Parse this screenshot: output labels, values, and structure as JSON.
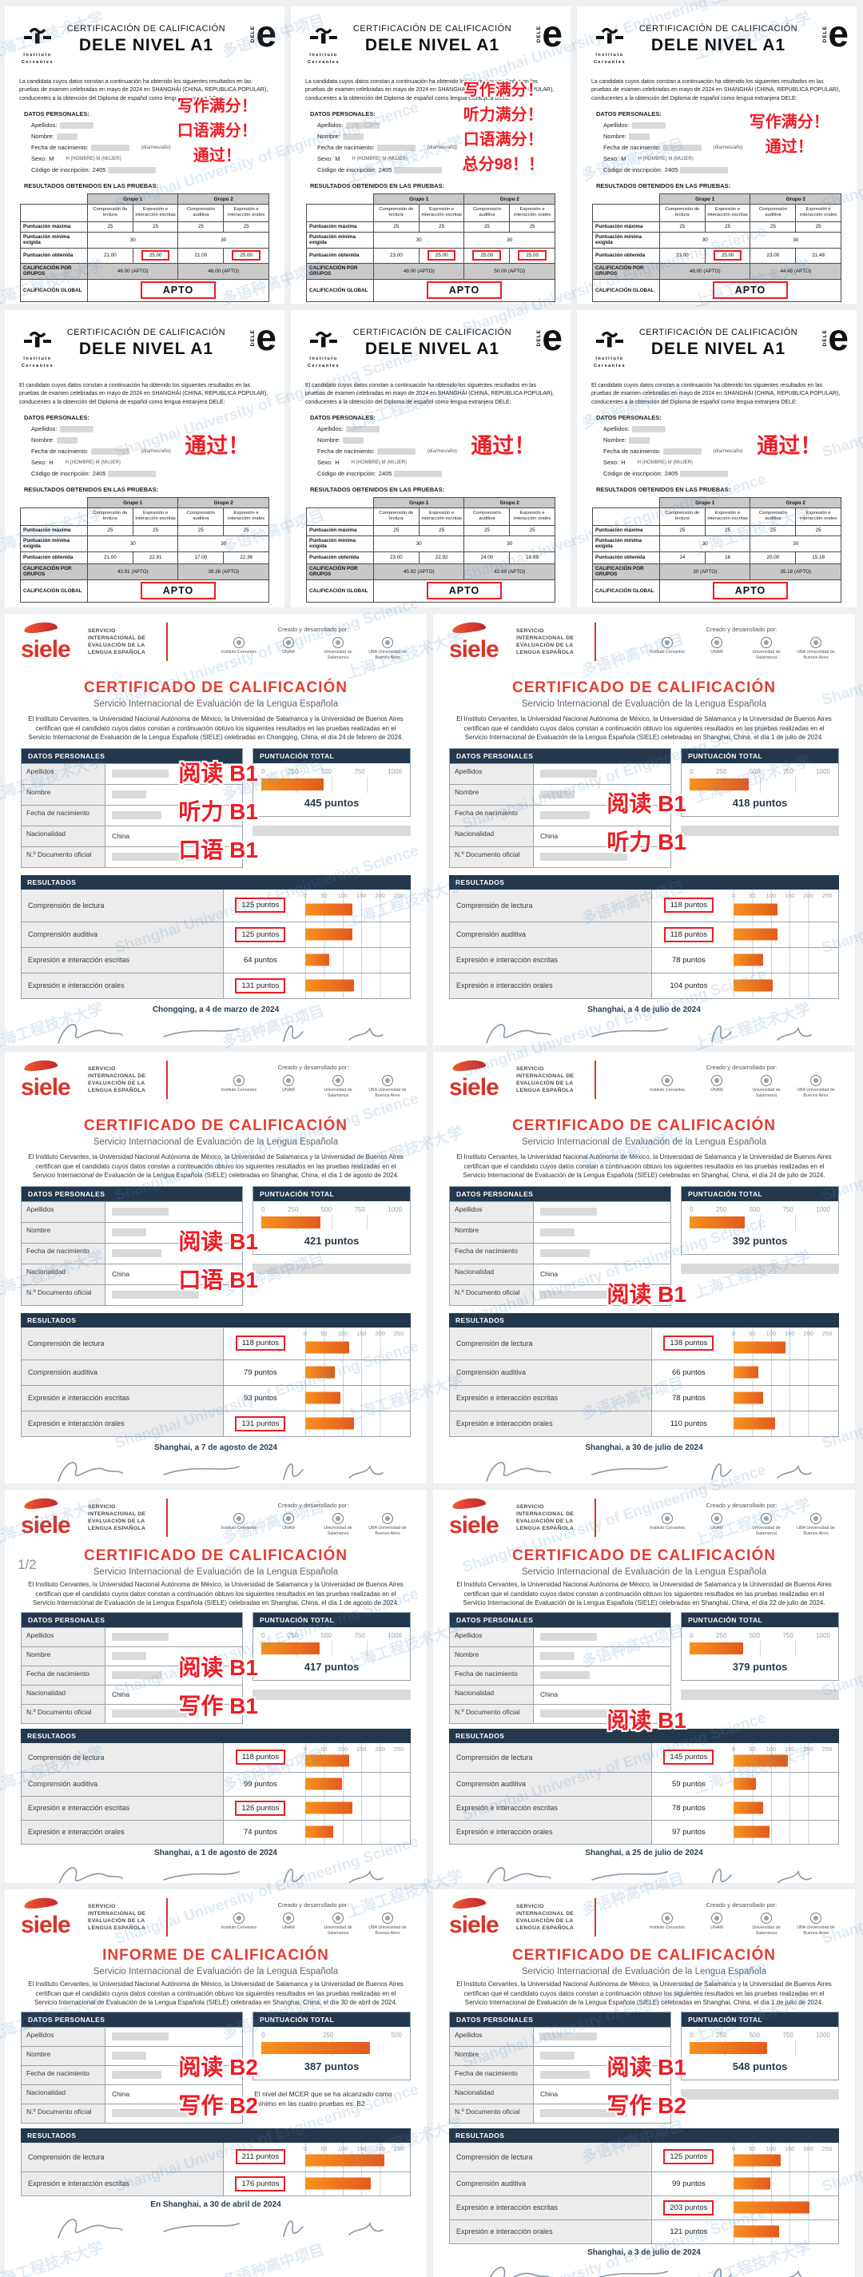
{
  "watermark": {
    "text1": "上海工程技术大学",
    "text2": "多语种高中项目",
    "text3": "Shanghai University of Engineering Science"
  },
  "dele": {
    "heading_small": "CERTIFICACIÓN DE CALIFICACIÓN",
    "heading_big": "DELE NIVEL A1",
    "cervantes_name": "Instituto Cervantes",
    "logo_vertical": "DELE",
    "logo_e": "e",
    "datos_title": "DATOS PERSONALES:",
    "fields": {
      "apellidos": "Apellidos:",
      "nombre": "Nombre:",
      "fecha": "Fecha de nacimiento:",
      "fecha_suffix": "(día/mes/año)",
      "sexo": "Sexo:",
      "sexo_legend": "H (HOMBRE)  M (MUJER)",
      "codigo": "Código de inscripción:",
      "codigo_prefix": "2405"
    },
    "resultados_title": "RESULTADOS OBTENIDOS EN LAS PRUEBAS:",
    "table": {
      "grupo1": "Grupo 1",
      "grupo2": "Grupo 2",
      "col1": "Comprensión de lectura",
      "col2": "Expresión e interacción escritas",
      "col3": "Comprensión auditiva",
      "col4": "Expresión e interacción orales",
      "row_max": "Puntuación máxima",
      "row_min": "Puntuación mínima exigida",
      "row_obt": "Puntuación obtenida",
      "row_grupos": "CALIFICACIÓN POR GRUPOS",
      "row_global": "CALIFICACIÓN GLOBAL",
      "max_value": "25",
      "min_value": "30"
    },
    "certs": [
      {
        "intro": "La candidata cuyos datos constan a continuación ha obtenido los siguientes resultados en las pruebas de examen celebradas en mayo de 2024 en SHANGHÁI (CHINA, REPUBLICA POPULAR), conducentes a la obtención del Diploma de español como lengua extranjera DELE:",
        "sexo_value": "M",
        "annotations": [
          "写作满分！",
          "口语满分！",
          "通过！"
        ],
        "scores": [
          "21.00",
          "25.00",
          "21.00",
          "25.00"
        ],
        "boxed": [
          false,
          true,
          false,
          true
        ],
        "grupo1_result": "46.00 (APTO)",
        "grupo2_result": "46.00 (APTO)",
        "global": "APTO"
      },
      {
        "intro": "La candidata cuyos datos constan a continuación ha obtenido los siguientes resultados en las pruebas de examen celebradas en mayo de 2024 en SHANGHÁI (CHINA, REPUBLICA POPULAR), conducentes a la obtención del Diploma de español como lengua extranjera DELE:",
        "sexo_value": "M",
        "annotations": [
          "写作满分！",
          "听力满分！",
          "口语满分！",
          "总分98！！"
        ],
        "scores": [
          "23.00",
          "25.00",
          "25.00",
          "25.00"
        ],
        "boxed": [
          false,
          true,
          true,
          true
        ],
        "grupo1_result": "48.00 (APTO)",
        "grupo2_result": "50.00 (APTO)",
        "global": "APTO"
      },
      {
        "intro": "La candidata cuyos datos constan a continuación ha obtenido los siguientes resultados en las pruebas de examen celebradas en mayo de 2024 en SHANGHÁI (CHINA, REPUBLICA POPULAR), conducentes a la obtención del Diploma de español como lengua extranjera DELE:",
        "sexo_value": "M",
        "annotations": [
          "写作满分！",
          "通过！"
        ],
        "scores": [
          "23.00",
          "25.00",
          "23.00",
          "21.48"
        ],
        "boxed": [
          false,
          true,
          false,
          false
        ],
        "grupo1_result": "48.00 (APTO)",
        "grupo2_result": "44.48 (APTO)",
        "global": "APTO"
      },
      {
        "intro": "El candidato cuyos datos constan a continuación ha obtenido los siguientes resultados en las pruebas de examen celebradas en mayo de 2024 en SHANGHÁI (CHINA, REPUBLICA POPULAR), conducentes a la obtención del Diploma de español como lengua extranjera DELE:",
        "sexo_value": "H",
        "annotations": [
          "通过！"
        ],
        "scores": [
          "21.00",
          "22.91",
          "17.00",
          "22.36"
        ],
        "boxed": [
          false,
          false,
          false,
          false
        ],
        "grupo1_result": "43.91 (APTO)",
        "grupo2_result": "39.36 (APTO)",
        "global": "APTO"
      },
      {
        "intro": "El candidato cuyos datos constan a continuación ha obtenido los siguientes resultados en las pruebas de examen celebradas en mayo de 2024 en SHANGHÁI (CHINA, REPUBLICA POPULAR), conducentes a la obtención del Diploma de español como lengua extranjera DELE:",
        "sexo_value": "H",
        "annotations": [
          "通过！"
        ],
        "scores": [
          "23.00",
          "22.92",
          "24.00",
          "18.69"
        ],
        "boxed": [
          false,
          false,
          false,
          false
        ],
        "grupo1_result": "45.92 (APTO)",
        "grupo2_result": "42.69 (APTO)",
        "global": "APTO"
      },
      {
        "intro": "El candidato cuyos datos constan a continuación ha obtenido los siguientes resultados en las pruebas de examen celebradas en mayo de 2024 en SHANGHÁI (CHINA, REPUBLICA POPULAR), conducentes a la obtención del Diploma de español como lengua extranjera DELE:",
        "sexo_value": "H",
        "annotations": [
          "通过！"
        ],
        "scores": [
          "14",
          "16",
          "20.00",
          "15.18"
        ],
        "boxed": [
          false,
          false,
          false,
          false
        ],
        "grupo1_result": "30 (APTO)",
        "grupo2_result": "35.18 (APTO)",
        "global": "APTO"
      }
    ]
  },
  "siele": {
    "logo_text": "siele",
    "service_name": "SERVICIO INTERNACIONAL DE EVALUACIÓN DE LA LENGUA ESPAÑOLA",
    "created_by": "Creado y desarrollado por:",
    "partners": [
      "Instituto Cervantes",
      "UNAM",
      "Universidad de Salamanca",
      "UBA Universidad de Buenos Aires"
    ],
    "subtitle": "Servicio Internacional de Evaluación de la Lengua Española",
    "datos_title": "DATOS PERSONALES",
    "fields": [
      "Apellidos",
      "Nombre",
      "Fecha de nacimiento",
      "Nacionalidad",
      "N.º Documento oficial"
    ],
    "redact_widths": [
      "46%",
      "28%",
      "40%",
      "0",
      "70%"
    ],
    "nacionalidad_value": "China",
    "total_title": "PUNTUACIÓN TOTAL",
    "resultados_title": "RESULTADOS",
    "row_axis": [
      "0",
      "50",
      "100",
      "150",
      "200",
      "250"
    ],
    "row_labels": [
      "Comprensión de lectura",
      "Comprensión auditiva",
      "Expresión e interacción escritas",
      "Expresión e interacción orales"
    ],
    "certs": [
      {
        "page_marker": "",
        "title": "CERTIFICADO DE CALIFICACIÓN",
        "intro": "El Instituto Cervantes, la Universidad Nacional Autónoma de México, la Universidad de Salamanca y la Universidad de Buenos Aires certifican que el candidato cuyos datos constan a continuación obtuvo los siguientes resultados en las pruebas realizadas en el Servicio Internacional de Evaluación de la Lengua Española (SIELE) celebradas en Chongqing, China, el día 24 de febrero de 2024.",
        "total": {
          "v": 445,
          "max": 1000,
          "text": "445 puntos",
          "axis": [
            "0",
            "250",
            "500",
            "750",
            "1000"
          ]
        },
        "annotations": [
          "阅读 B1",
          "听力 B1",
          "口语 B1"
        ],
        "rows": [
          {
            "li": 0,
            "v": 125,
            "text": "125 puntos",
            "boxed": true
          },
          {
            "li": 1,
            "v": 125,
            "text": "125 puntos",
            "boxed": true
          },
          {
            "li": 2,
            "v": 64,
            "text": "64 puntos",
            "boxed": false
          },
          {
            "li": 3,
            "v": 131,
            "text": "131 puntos",
            "boxed": true
          }
        ],
        "date_line": "Chongqing, a 4 de marzo de 2024",
        "mcer_note": null
      },
      {
        "page_marker": "",
        "title": "CERTIFICADO DE CALIFICACIÓN",
        "intro": "El Instituto Cervantes, la Universidad Nacional Autónoma de México, la Universidad de Salamanca y la Universidad de Buenos Aires certifican que el candidato cuyos datos constan a continuación obtuvo los siguientes resultados en las pruebas realizadas en el Servicio Internacional de Evaluación de la Lengua Española (SIELE) celebradas en Shanghai, China, el día 1 de julio de 2024.",
        "total": {
          "v": 418,
          "max": 1000,
          "text": "418 puntos",
          "axis": [
            "0",
            "250",
            "500",
            "750",
            "1000"
          ]
        },
        "annotations": [
          "阅读 B1",
          "听力 B1"
        ],
        "rows": [
          {
            "li": 0,
            "v": 118,
            "text": "118 puntos",
            "boxed": true
          },
          {
            "li": 1,
            "v": 118,
            "text": "118 puntos",
            "boxed": true
          },
          {
            "li": 2,
            "v": 78,
            "text": "78 puntos",
            "boxed": false
          },
          {
            "li": 3,
            "v": 104,
            "text": "104 puntos",
            "boxed": false
          }
        ],
        "date_line": "Shanghai, a 4 de julio de 2024",
        "mcer_note": null
      },
      {
        "page_marker": "",
        "title": "CERTIFICADO DE CALIFICACIÓN",
        "intro": "El Instituto Cervantes, la Universidad Nacional Autónoma de México, la Universidad de Salamanca y la Universidad de Buenos Aires certifican que el candidato cuyos datos constan a continuación obtuvo los siguientes resultados en las pruebas realizadas en el Servicio Internacional de Evaluación de la Lengua Española (SIELE) celebradas en Shanghai, China, el día 1 de agosto de 2024.",
        "total": {
          "v": 421,
          "max": 1000,
          "text": "421 puntos",
          "axis": [
            "0",
            "250",
            "500",
            "750",
            "1000"
          ]
        },
        "annotations": [
          "阅读 B1",
          "口语 B1"
        ],
        "rows": [
          {
            "li": 0,
            "v": 118,
            "text": "118 puntos",
            "boxed": true
          },
          {
            "li": 1,
            "v": 79,
            "text": "79 puntos",
            "boxed": false
          },
          {
            "li": 2,
            "v": 93,
            "text": "93 puntos",
            "boxed": false
          },
          {
            "li": 3,
            "v": 131,
            "text": "131 puntos",
            "boxed": true
          }
        ],
        "date_line": "Shanghai, a 7 de agosto de 2024",
        "mcer_note": null
      },
      {
        "page_marker": "",
        "title": "CERTIFICADO DE CALIFICACIÓN",
        "intro": "El Instituto Cervantes, la Universidad Nacional Autónoma de México, la Universidad de Salamanca y la Universidad de Buenos Aires certifican que el candidato cuyos datos constan a continuación obtuvo los siguientes resultados en las pruebas realizadas en el Servicio Internacional de Evaluación de la Lengua Española (SIELE) celebradas en Shanghai, China, el día 24 de julio de 2024.",
        "total": {
          "v": 392,
          "max": 1000,
          "text": "392 puntos",
          "axis": [
            "0",
            "250",
            "500",
            "750",
            "1000"
          ]
        },
        "annotations": [
          "阅读 B1"
        ],
        "rows": [
          {
            "li": 0,
            "v": 138,
            "text": "138 puntos",
            "boxed": true
          },
          {
            "li": 1,
            "v": 66,
            "text": "66 puntos",
            "boxed": false
          },
          {
            "li": 2,
            "v": 78,
            "text": "78 puntos",
            "boxed": false
          },
          {
            "li": 3,
            "v": 110,
            "text": "110 puntos",
            "boxed": false
          }
        ],
        "date_line": "Shanghai, a 30 de julio de 2024",
        "mcer_note": null
      },
      {
        "page_marker": "1/2",
        "title": "CERTIFICADO DE CALIFICACIÓN",
        "intro": "El Instituto Cervantes, la Universidad Nacional Autónoma de México, la Universidad de Salamanca y la Universidad de Buenos Aires certifican que el candidato cuyos datos constan a continuación obtuvo los siguientes resultados en las pruebas realizadas en el Servicio Internacional de Evaluación de la Lengua Española (SIELE) celebradas en Shanghai, China, el día 1 de agosto de 2024.",
        "total": {
          "v": 417,
          "max": 1000,
          "text": "417 puntos",
          "axis": [
            "0",
            "250",
            "500",
            "750",
            "1000"
          ]
        },
        "annotations": [
          "阅读 B1",
          "写作 B1"
        ],
        "rows": [
          {
            "li": 0,
            "v": 118,
            "text": "118 puntos",
            "boxed": true
          },
          {
            "li": 1,
            "v": 99,
            "text": "99 puntos",
            "boxed": false
          },
          {
            "li": 2,
            "v": 126,
            "text": "126 puntos",
            "boxed": true
          },
          {
            "li": 3,
            "v": 74,
            "text": "74 puntos",
            "boxed": false
          }
        ],
        "date_line": "Shanghai, a 1 de agosto de 2024",
        "mcer_note": null
      },
      {
        "page_marker": "",
        "title": "CERTIFICADO DE CALIFICACIÓN",
        "intro": "El Instituto Cervantes, la Universidad Nacional Autónoma de México, la Universidad de Salamanca y la Universidad de Buenos Aires certifican que el candidato cuyos datos constan a continuación obtuvo los siguientes resultados en las pruebas realizadas en el Servicio Internacional de Evaluación de la Lengua Española (SIELE) celebradas en Shanghai, China, el día 22 de julio de 2024.",
        "total": {
          "v": 379,
          "max": 1000,
          "text": "379 puntos",
          "axis": [
            "0",
            "250",
            "500",
            "750",
            "1000"
          ]
        },
        "annotations": [
          "阅读 B1"
        ],
        "rows": [
          {
            "li": 0,
            "v": 145,
            "text": "145 puntos",
            "boxed": true
          },
          {
            "li": 1,
            "v": 59,
            "text": "59 puntos",
            "boxed": false
          },
          {
            "li": 2,
            "v": 78,
            "text": "78 puntos",
            "boxed": false
          },
          {
            "li": 3,
            "v": 97,
            "text": "97 puntos",
            "boxed": false
          }
        ],
        "date_line": "Shanghai, a 25 de julio de 2024",
        "mcer_note": null
      },
      {
        "page_marker": "",
        "title": "INFORME DE CALIFICACIÓN",
        "intro": "El Instituto Cervantes, la Universidad Nacional Autónoma de México, la Universidad de Salamanca y la Universidad de Buenos Aires certifican que el candidato cuyos datos constan a continuación obtuvo los siguientes resultados en las pruebas realizadas en el Servicio Internacional de Evaluación de la Lengua Española (SIELE) celebradas en Shanghai, China, el día 30 de abril de 2024.",
        "total": {
          "v": 387,
          "max": 500,
          "text": "387 puntos",
          "axis": [
            "0",
            "250",
            "500"
          ]
        },
        "annotations": [
          "阅读 B2",
          "写作 B2"
        ],
        "rows": [
          {
            "li": 0,
            "v": 211,
            "text": "211 puntos",
            "boxed": true
          },
          {
            "li": 2,
            "v": 176,
            "text": "176 puntos",
            "boxed": true
          }
        ],
        "date_line": "En Shanghai, a 30 de abril de 2024",
        "mcer_note": "El nivel del MCER que se ha alcanzado como mínimo en las cuatro pruebas es: B2"
      },
      {
        "page_marker": "",
        "title": "CERTIFICADO DE CALIFICACIÓN",
        "intro": "El Instituto Cervantes, la Universidad Nacional Autónoma de México, la Universidad de Salamanca y la Universidad de Buenos Aires certifican que el candidato cuyos datos constan a continuación obtuvo los siguientes resultados en las pruebas realizadas en el Servicio Internacional de Evaluación de la Lengua Española (SIELE) celebradas en Shanghai, China, el día 1 de julio de 2024.",
        "total": {
          "v": 548,
          "max": 1000,
          "text": "548 puntos",
          "axis": [
            "0",
            "250",
            "500",
            "750",
            "1000"
          ]
        },
        "annotations": [
          "阅读 B1",
          "写作 B2"
        ],
        "rows": [
          {
            "li": 0,
            "v": 125,
            "text": "125 puntos",
            "boxed": true
          },
          {
            "li": 1,
            "v": 99,
            "text": "99 puntos",
            "boxed": false
          },
          {
            "li": 2,
            "v": 203,
            "text": "203 puntos",
            "boxed": true
          },
          {
            "li": 3,
            "v": 121,
            "text": "121 puntos",
            "boxed": false
          }
        ],
        "date_line": "Shanghai, a 3 de julio de 2024",
        "mcer_note": null
      }
    ]
  }
}
